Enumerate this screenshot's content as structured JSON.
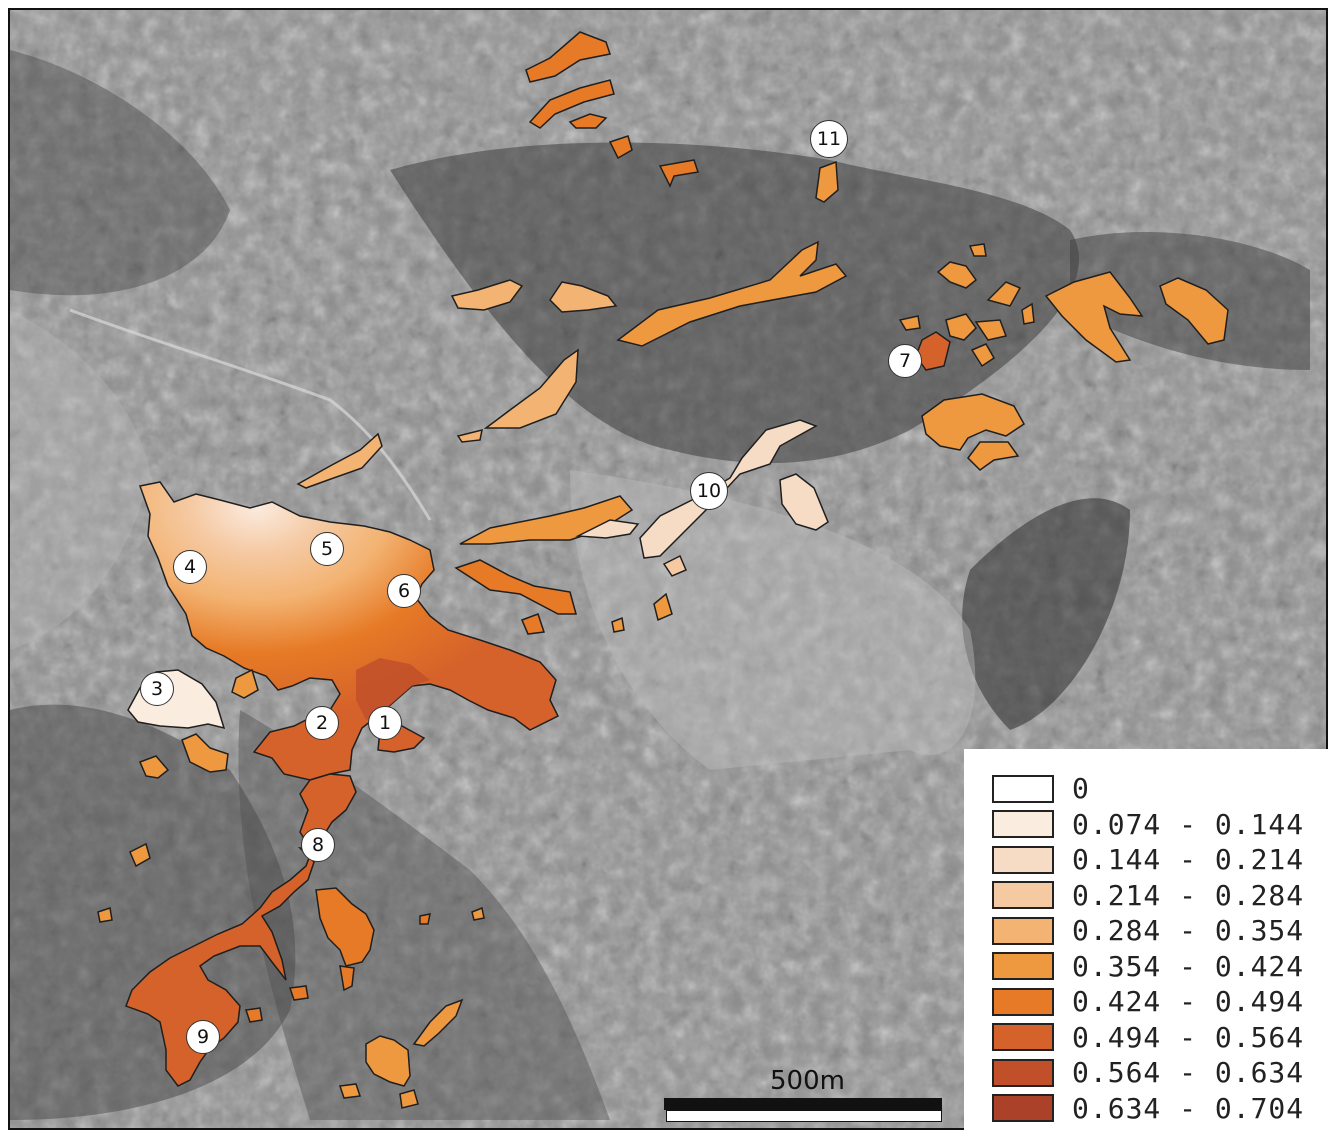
{
  "map": {
    "sites": [
      {
        "id": "1",
        "label": "1"
      },
      {
        "id": "2",
        "label": "2"
      },
      {
        "id": "3",
        "label": "3"
      },
      {
        "id": "4",
        "label": "4"
      },
      {
        "id": "5",
        "label": "5"
      },
      {
        "id": "6",
        "label": "6"
      },
      {
        "id": "7",
        "label": "7"
      },
      {
        "id": "8",
        "label": "8"
      },
      {
        "id": "9",
        "label": "9"
      },
      {
        "id": "10",
        "label": "10"
      },
      {
        "id": "11",
        "label": "11"
      }
    ],
    "scale_bar": {
      "label": "500m"
    }
  },
  "legend": {
    "classes": [
      {
        "label": "0",
        "color": "#ffffff"
      },
      {
        "label": "0.074 - 0.144",
        "color": "#fbece0"
      },
      {
        "label": "0.144 - 0.214",
        "color": "#f7dcc5"
      },
      {
        "label": "0.214 - 0.284",
        "color": "#f5c9a2"
      },
      {
        "label": "0.284 - 0.354",
        "color": "#f3b372"
      },
      {
        "label": "0.354 - 0.424",
        "color": "#ee9840"
      },
      {
        "label": "0.424 - 0.494",
        "color": "#e67a26"
      },
      {
        "label": "0.494 - 0.564",
        "color": "#d5622a"
      },
      {
        "label": "0.564 - 0.634",
        "color": "#c1502a"
      },
      {
        "label": "0.634 - 0.704",
        "color": "#ab4128"
      }
    ]
  }
}
